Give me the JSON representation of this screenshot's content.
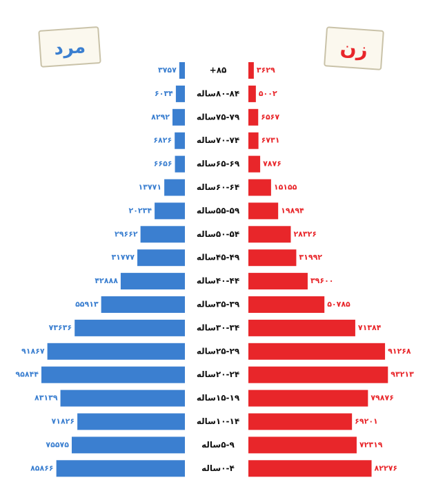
{
  "chart_data": {
    "type": "population-pyramid",
    "categories": [
      "۸۵+",
      "۸۰-۸۴ساله",
      "۷۵-۷۹ساله",
      "۷۰-۷۴ساله",
      "۶۵-۶۹ساله",
      "۶۰-۶۴ساله",
      "۵۵-۵۹ساله",
      "۵۰-۵۴ساله",
      "۴۵-۴۹ساله",
      "۴۰-۴۴ساله",
      "۳۵-۳۹ساله",
      "۳۰-۳۴ساله",
      "۲۵-۲۹ساله",
      "۲۰-۲۴ساله",
      "۱۵-۱۹ساله",
      "۱۰-۱۴ساله",
      "۵-۹ساله",
      "۰-۴ساله"
    ],
    "series": [
      {
        "name": "مرد",
        "color": "#3b7fd0",
        "side": "left",
        "values": [
          3757,
          6034,
          8292,
          6826,
          6656,
          13771,
          20234,
          29662,
          31777,
          42888,
          55913,
          73636,
          91867,
          95844,
          83139,
          71826,
          75575,
          85866
        ],
        "value_labels": [
          "۳۷۵۷",
          "۶۰۳۴",
          "۸۲۹۲",
          "۶۸۲۶",
          "۶۶۵۶",
          "۱۳۷۷۱",
          "۲۰۲۳۴",
          "۲۹۶۶۲",
          "۳۱۷۷۷",
          "۴۲۸۸۸",
          "۵۵۹۱۳",
          "۷۳۶۳۶",
          "۹۱۸۶۷",
          "۹۵۸۴۴",
          "۸۳۱۳۹",
          "۷۱۸۲۶",
          "۷۵۵۷۵",
          "۸۵۸۶۶"
        ]
      },
      {
        "name": "زن",
        "color": "#e8262a",
        "side": "right",
        "values": [
          3629,
          5002,
          6567,
          6731,
          7876,
          15155,
          19894,
          28326,
          31992,
          39600,
          50785,
          71384,
          91268,
          93213,
          79876,
          69201,
          72319,
          82276
        ],
        "value_labels": [
          "۳۶۲۹",
          "۵۰۰۲",
          "۶۵۶۷",
          "۶۷۳۱",
          "۷۸۷۶",
          "۱۵۱۵۵",
          "۱۹۸۹۴",
          "۲۸۳۲۶",
          "۳۱۹۹۲",
          "۳۹۶۰۰",
          "۵۰۷۸۵",
          "۷۱۳۸۴",
          "۹۱۲۶۸",
          "۹۳۲۱۳",
          "۷۹۸۷۶",
          "۶۹۲۰۱",
          "۷۲۳۱۹",
          "۸۲۲۷۶"
        ]
      }
    ]
  }
}
